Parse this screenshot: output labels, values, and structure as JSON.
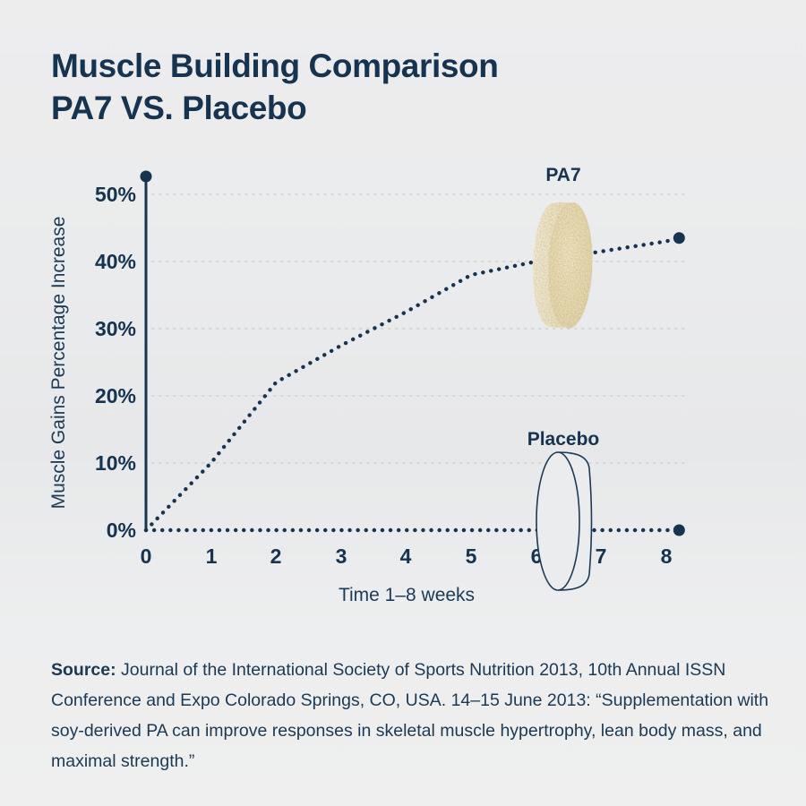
{
  "page": {
    "title_line1": "Muscle Building Comparison",
    "title_line2": "PA7 VS. Placebo"
  },
  "chart": {
    "ylabel": "Muscle Gains Percentage Increase",
    "xlabel": "Time 1–8 weeks",
    "y_ticks": [
      "50%",
      "40%",
      "30%",
      "20%",
      "10%",
      "0%"
    ],
    "x_ticks": [
      "0",
      "1",
      "2",
      "3",
      "4",
      "5",
      "6",
      "7",
      "8"
    ],
    "series_labels": {
      "pa7": "PA7",
      "placebo": "Placebo"
    },
    "icons": {
      "pa7_pill": "tan-speckled-supplement-tablet",
      "placebo_pill": "transparent-outlined-tablet"
    }
  },
  "chart_data": {
    "type": "line",
    "title": "Muscle Building Comparison PA7 VS. Placebo",
    "x": [
      0,
      1,
      2,
      3,
      4,
      5,
      6,
      7,
      8
    ],
    "series": [
      {
        "name": "PA7",
        "values": [
          0,
          10,
          22,
          27.5,
          32.5,
          38,
          40,
          41.5,
          43
        ]
      },
      {
        "name": "Placebo",
        "values": [
          0,
          0,
          0,
          0,
          0,
          0,
          0,
          0,
          0
        ]
      }
    ],
    "end_markers": {
      "x_week": 8.2,
      "pa7_value": 43.5,
      "placebo_value": 0
    },
    "xlabel": "Time 1–8 weeks",
    "ylabel": "Muscle Gains Percentage Increase",
    "ylim": [
      0,
      52.5
    ],
    "xlim": [
      0,
      8.2
    ],
    "grid": "horizontal-dotted",
    "line_style": "dotted",
    "legend_position": "inline-labels-above-pill-icons"
  },
  "source": {
    "label": "Source:",
    "text": " Journal of the International Society of Sports Nutrition 2013, 10th Annual ISSN Conference and Expo Colorado Springs, CO, USA. 14–15 June 2013: “Supplementation with soy-derived PA can improve responses in skeletal muscle hypertrophy, lean body mass, and maximal strength.”"
  },
  "colors": {
    "navy": "#16334f",
    "grid_dots": "#d4d5d5",
    "pill_tan": "#dfcc92",
    "pill_tan_light": "#f0e7c8",
    "background": "#ebecec"
  }
}
